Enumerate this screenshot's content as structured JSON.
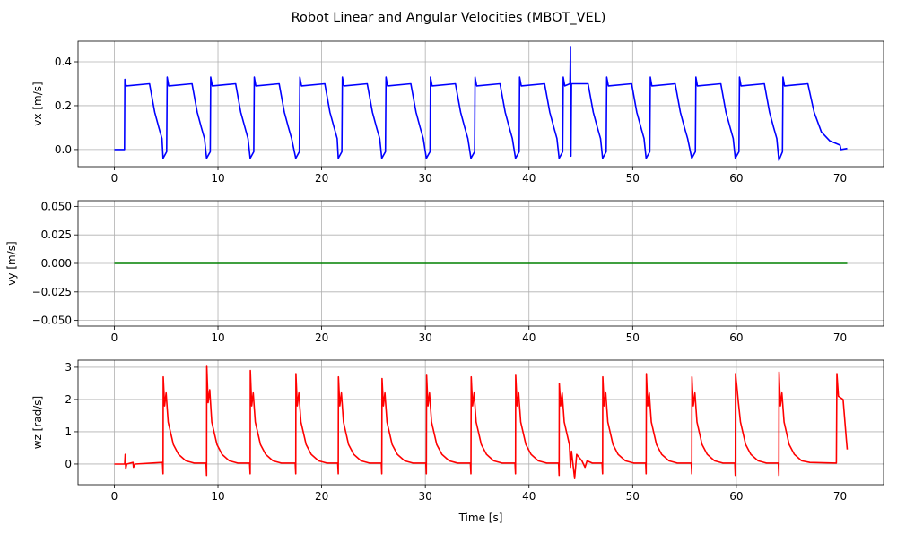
{
  "chart_data": [
    {
      "type": "line",
      "title": "Robot Linear and Angular Velocities (MBOT_VEL)",
      "xlabel": "",
      "ylabel": "vx [m/s]",
      "xlim": [
        -3.5,
        74.2
      ],
      "ylim": [
        -0.078,
        0.494
      ],
      "xticks": [
        0,
        10,
        20,
        30,
        40,
        50,
        60,
        70
      ],
      "yticks": [
        0.0,
        0.2,
        0.4
      ],
      "ytick_labels": [
        "0.0",
        "0.2",
        "0.4"
      ],
      "grid": true,
      "color": "#0000ff",
      "points": [
        [
          0,
          0
        ],
        [
          0.98,
          0
        ],
        [
          1.02,
          0.32
        ],
        [
          1.15,
          0.29
        ],
        [
          3.4,
          0.3
        ],
        [
          3.9,
          0.17
        ],
        [
          4.3,
          0.1
        ],
        [
          4.6,
          0.05
        ],
        [
          4.7,
          -0.04
        ],
        [
          5.05,
          -0.01
        ],
        [
          5.1,
          0.33
        ],
        [
          5.25,
          0.29
        ],
        [
          7.5,
          0.3
        ],
        [
          8.0,
          0.17
        ],
        [
          8.4,
          0.1
        ],
        [
          8.7,
          0.05
        ],
        [
          8.9,
          -0.04
        ],
        [
          9.25,
          -0.01
        ],
        [
          9.3,
          0.33
        ],
        [
          9.45,
          0.29
        ],
        [
          11.7,
          0.3
        ],
        [
          12.2,
          0.17
        ],
        [
          12.6,
          0.1
        ],
        [
          12.9,
          0.05
        ],
        [
          13.1,
          -0.04
        ],
        [
          13.45,
          -0.01
        ],
        [
          13.5,
          0.33
        ],
        [
          13.65,
          0.29
        ],
        [
          15.9,
          0.3
        ],
        [
          16.4,
          0.17
        ],
        [
          16.8,
          0.1
        ],
        [
          17.1,
          0.05
        ],
        [
          17.5,
          -0.04
        ],
        [
          17.85,
          -0.01
        ],
        [
          17.9,
          0.33
        ],
        [
          18.05,
          0.29
        ],
        [
          20.3,
          0.3
        ],
        [
          20.8,
          0.17
        ],
        [
          21.2,
          0.1
        ],
        [
          21.5,
          0.05
        ],
        [
          21.6,
          -0.04
        ],
        [
          21.95,
          -0.01
        ],
        [
          22.0,
          0.33
        ],
        [
          22.15,
          0.29
        ],
        [
          24.4,
          0.3
        ],
        [
          24.9,
          0.17
        ],
        [
          25.3,
          0.1
        ],
        [
          25.6,
          0.05
        ],
        [
          25.8,
          -0.04
        ],
        [
          26.15,
          -0.01
        ],
        [
          26.2,
          0.33
        ],
        [
          26.35,
          0.29
        ],
        [
          28.6,
          0.3
        ],
        [
          29.1,
          0.17
        ],
        [
          29.5,
          0.1
        ],
        [
          29.8,
          0.05
        ],
        [
          30.1,
          -0.04
        ],
        [
          30.45,
          -0.01
        ],
        [
          30.5,
          0.33
        ],
        [
          30.65,
          0.29
        ],
        [
          32.9,
          0.3
        ],
        [
          33.4,
          0.17
        ],
        [
          33.8,
          0.1
        ],
        [
          34.1,
          0.05
        ],
        [
          34.4,
          -0.04
        ],
        [
          34.75,
          -0.01
        ],
        [
          34.8,
          0.33
        ],
        [
          34.95,
          0.29
        ],
        [
          37.2,
          0.3
        ],
        [
          37.7,
          0.17
        ],
        [
          38.1,
          0.1
        ],
        [
          38.4,
          0.05
        ],
        [
          38.7,
          -0.04
        ],
        [
          39.05,
          -0.01
        ],
        [
          39.1,
          0.33
        ],
        [
          39.25,
          0.29
        ],
        [
          41.5,
          0.3
        ],
        [
          42.0,
          0.17
        ],
        [
          42.4,
          0.1
        ],
        [
          42.7,
          0.05
        ],
        [
          42.9,
          -0.04
        ],
        [
          43.25,
          -0.01
        ],
        [
          43.3,
          0.33
        ],
        [
          43.45,
          0.29
        ],
        [
          43.95,
          0.3
        ],
        [
          44.0,
          0.47
        ],
        [
          44.05,
          -0.03
        ],
        [
          44.1,
          0.3
        ],
        [
          45.7,
          0.3
        ],
        [
          46.2,
          0.17
        ],
        [
          46.6,
          0.1
        ],
        [
          46.9,
          0.05
        ],
        [
          47.1,
          -0.04
        ],
        [
          47.45,
          -0.01
        ],
        [
          47.5,
          0.33
        ],
        [
          47.65,
          0.29
        ],
        [
          49.9,
          0.3
        ],
        [
          50.4,
          0.17
        ],
        [
          50.8,
          0.1
        ],
        [
          51.1,
          0.05
        ],
        [
          51.3,
          -0.04
        ],
        [
          51.65,
          -0.01
        ],
        [
          51.7,
          0.33
        ],
        [
          51.85,
          0.29
        ],
        [
          54.1,
          0.3
        ],
        [
          54.6,
          0.17
        ],
        [
          55.0,
          0.1
        ],
        [
          55.3,
          0.05
        ],
        [
          55.7,
          -0.04
        ],
        [
          56.05,
          -0.01
        ],
        [
          56.1,
          0.33
        ],
        [
          56.25,
          0.29
        ],
        [
          58.5,
          0.3
        ],
        [
          59.0,
          0.17
        ],
        [
          59.4,
          0.1
        ],
        [
          59.7,
          0.05
        ],
        [
          59.9,
          -0.04
        ],
        [
          60.25,
          -0.01
        ],
        [
          60.3,
          0.33
        ],
        [
          60.45,
          0.29
        ],
        [
          62.7,
          0.3
        ],
        [
          63.2,
          0.17
        ],
        [
          63.6,
          0.1
        ],
        [
          63.9,
          0.05
        ],
        [
          64.1,
          -0.05
        ],
        [
          64.45,
          -0.01
        ],
        [
          64.5,
          0.33
        ],
        [
          64.65,
          0.29
        ],
        [
          66.9,
          0.3
        ],
        [
          67.5,
          0.17
        ],
        [
          68.2,
          0.08
        ],
        [
          69.0,
          0.04
        ],
        [
          70.0,
          0.02
        ],
        [
          70.1,
          0.0
        ],
        [
          70.7,
          0.005
        ]
      ]
    },
    {
      "type": "line",
      "xlabel": "",
      "ylabel": "vy [m/s]",
      "xlim": [
        -3.5,
        74.2
      ],
      "ylim": [
        -0.055,
        0.055
      ],
      "xticks": [
        0,
        10,
        20,
        30,
        40,
        50,
        60,
        70
      ],
      "yticks": [
        -0.05,
        -0.025,
        0,
        0.025,
        0.05
      ],
      "ytick_labels": [
        "−0.050",
        "−0.025",
        "0.000",
        "0.025",
        "0.050"
      ],
      "grid": true,
      "color": "#008000",
      "points": [
        [
          0,
          0
        ],
        [
          70.7,
          0
        ]
      ]
    },
    {
      "type": "line",
      "xlabel": "Time [s]",
      "ylabel": "wz [rad/s]",
      "xlim": [
        -3.5,
        74.2
      ],
      "ylim": [
        -0.64,
        3.22
      ],
      "xticks": [
        0,
        10,
        20,
        30,
        40,
        50,
        60,
        70
      ],
      "yticks": [
        0,
        1,
        2,
        3
      ],
      "ytick_labels": [
        "0",
        "1",
        "2",
        "3"
      ],
      "grid": true,
      "color": "#ff0000",
      "points": [
        [
          0,
          0
        ],
        [
          1.0,
          0
        ],
        [
          1.05,
          0.3
        ],
        [
          1.1,
          -0.15
        ],
        [
          1.2,
          0.0
        ],
        [
          1.8,
          0.05
        ],
        [
          1.85,
          -0.1
        ],
        [
          2.0,
          0.0
        ],
        [
          4.6,
          0.05
        ],
        [
          4.65,
          0.05
        ],
        [
          4.7,
          -0.3
        ],
        [
          4.72,
          2.7
        ],
        [
          4.85,
          1.8
        ],
        [
          5.0,
          2.2
        ],
        [
          5.2,
          1.3
        ],
        [
          5.7,
          0.6
        ],
        [
          6.2,
          0.3
        ],
        [
          6.9,
          0.1
        ],
        [
          7.7,
          0.03
        ],
        [
          8.85,
          0.03
        ],
        [
          8.9,
          -0.35
        ],
        [
          8.92,
          3.05
        ],
        [
          9.05,
          1.9
        ],
        [
          9.2,
          2.3
        ],
        [
          9.4,
          1.3
        ],
        [
          9.9,
          0.6
        ],
        [
          10.4,
          0.3
        ],
        [
          11.1,
          0.1
        ],
        [
          11.9,
          0.03
        ],
        [
          13.05,
          0.03
        ],
        [
          13.1,
          -0.3
        ],
        [
          13.12,
          2.9
        ],
        [
          13.25,
          1.8
        ],
        [
          13.4,
          2.2
        ],
        [
          13.6,
          1.3
        ],
        [
          14.1,
          0.6
        ],
        [
          14.6,
          0.3
        ],
        [
          15.3,
          0.1
        ],
        [
          16.1,
          0.03
        ],
        [
          17.45,
          0.03
        ],
        [
          17.5,
          -0.3
        ],
        [
          17.52,
          2.8
        ],
        [
          17.65,
          1.8
        ],
        [
          17.8,
          2.2
        ],
        [
          18.0,
          1.3
        ],
        [
          18.5,
          0.6
        ],
        [
          19.0,
          0.3
        ],
        [
          19.7,
          0.1
        ],
        [
          20.5,
          0.03
        ],
        [
          21.55,
          0.03
        ],
        [
          21.6,
          -0.3
        ],
        [
          21.62,
          2.7
        ],
        [
          21.75,
          1.8
        ],
        [
          21.9,
          2.2
        ],
        [
          22.1,
          1.3
        ],
        [
          22.6,
          0.6
        ],
        [
          23.1,
          0.3
        ],
        [
          23.8,
          0.1
        ],
        [
          24.6,
          0.03
        ],
        [
          25.75,
          0.03
        ],
        [
          25.8,
          -0.3
        ],
        [
          25.82,
          2.65
        ],
        [
          25.95,
          1.8
        ],
        [
          26.1,
          2.2
        ],
        [
          26.3,
          1.3
        ],
        [
          26.8,
          0.6
        ],
        [
          27.3,
          0.3
        ],
        [
          28.0,
          0.1
        ],
        [
          28.8,
          0.03
        ],
        [
          30.05,
          0.03
        ],
        [
          30.1,
          -0.3
        ],
        [
          30.12,
          2.75
        ],
        [
          30.25,
          1.8
        ],
        [
          30.4,
          2.2
        ],
        [
          30.6,
          1.3
        ],
        [
          31.1,
          0.6
        ],
        [
          31.6,
          0.3
        ],
        [
          32.3,
          0.1
        ],
        [
          33.1,
          0.03
        ],
        [
          34.35,
          0.03
        ],
        [
          34.4,
          -0.3
        ],
        [
          34.42,
          2.7
        ],
        [
          34.55,
          1.8
        ],
        [
          34.7,
          2.2
        ],
        [
          34.9,
          1.3
        ],
        [
          35.4,
          0.6
        ],
        [
          35.9,
          0.3
        ],
        [
          36.6,
          0.1
        ],
        [
          37.4,
          0.03
        ],
        [
          38.65,
          0.03
        ],
        [
          38.7,
          -0.3
        ],
        [
          38.72,
          2.75
        ],
        [
          38.85,
          1.8
        ],
        [
          39.0,
          2.2
        ],
        [
          39.2,
          1.3
        ],
        [
          39.7,
          0.6
        ],
        [
          40.2,
          0.3
        ],
        [
          40.9,
          0.1
        ],
        [
          41.7,
          0.03
        ],
        [
          42.85,
          0.03
        ],
        [
          42.9,
          -0.35
        ],
        [
          42.92,
          2.5
        ],
        [
          43.05,
          1.8
        ],
        [
          43.2,
          2.2
        ],
        [
          43.4,
          1.3
        ],
        [
          43.9,
          0.6
        ],
        [
          44.0,
          -0.1
        ],
        [
          44.1,
          0.4
        ],
        [
          44.4,
          -0.45
        ],
        [
          44.6,
          0.3
        ],
        [
          45.1,
          0.1
        ],
        [
          45.4,
          -0.1
        ],
        [
          45.6,
          0.1
        ],
        [
          46.1,
          0.03
        ],
        [
          47.05,
          0.03
        ],
        [
          47.1,
          -0.3
        ],
        [
          47.12,
          2.7
        ],
        [
          47.25,
          1.8
        ],
        [
          47.4,
          2.2
        ],
        [
          47.6,
          1.3
        ],
        [
          48.1,
          0.6
        ],
        [
          48.6,
          0.3
        ],
        [
          49.3,
          0.1
        ],
        [
          50.1,
          0.03
        ],
        [
          51.25,
          0.03
        ],
        [
          51.3,
          -0.3
        ],
        [
          51.32,
          2.8
        ],
        [
          51.45,
          1.8
        ],
        [
          51.6,
          2.2
        ],
        [
          51.8,
          1.3
        ],
        [
          52.3,
          0.6
        ],
        [
          52.8,
          0.3
        ],
        [
          53.5,
          0.1
        ],
        [
          54.3,
          0.03
        ],
        [
          55.65,
          0.03
        ],
        [
          55.7,
          -0.3
        ],
        [
          55.72,
          2.7
        ],
        [
          55.85,
          1.8
        ],
        [
          56.0,
          2.2
        ],
        [
          56.2,
          1.3
        ],
        [
          56.7,
          0.6
        ],
        [
          57.2,
          0.3
        ],
        [
          57.9,
          0.1
        ],
        [
          58.7,
          0.03
        ],
        [
          59.85,
          0.03
        ],
        [
          59.9,
          -0.35
        ],
        [
          59.92,
          2.8
        ],
        [
          60.05,
          2.4
        ],
        [
          60.2,
          1.9
        ],
        [
          60.4,
          1.3
        ],
        [
          60.9,
          0.6
        ],
        [
          61.4,
          0.3
        ],
        [
          62.1,
          0.1
        ],
        [
          62.9,
          0.03
        ],
        [
          64.05,
          0.03
        ],
        [
          64.1,
          -0.35
        ],
        [
          64.12,
          2.85
        ],
        [
          64.25,
          1.8
        ],
        [
          64.4,
          2.2
        ],
        [
          64.6,
          1.3
        ],
        [
          65.1,
          0.6
        ],
        [
          65.6,
          0.3
        ],
        [
          66.3,
          0.1
        ],
        [
          67.1,
          0.05
        ],
        [
          69.65,
          0.03
        ],
        [
          69.7,
          2.8
        ],
        [
          69.85,
          2.1
        ],
        [
          70.3,
          2.0
        ],
        [
          70.6,
          0.8
        ],
        [
          70.7,
          0.45
        ]
      ]
    }
  ]
}
